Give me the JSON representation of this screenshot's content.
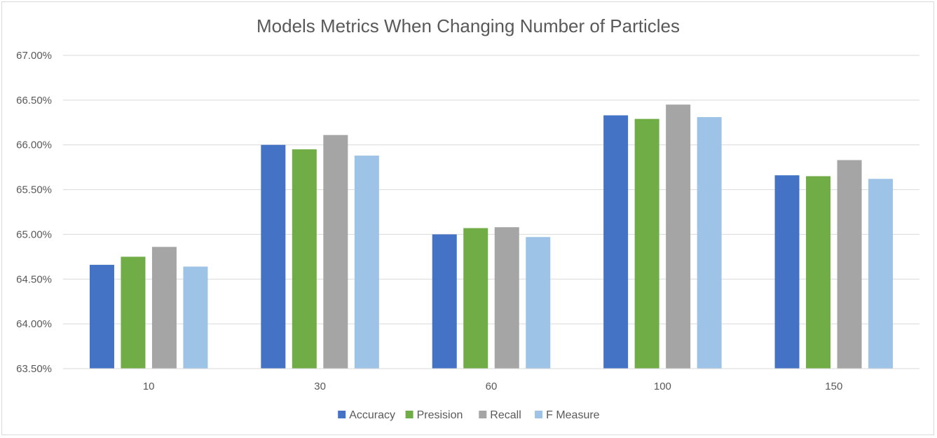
{
  "chart_data": {
    "type": "bar",
    "title": "Models Metrics When Changing Number of Particles",
    "xlabel": "",
    "ylabel": "",
    "categories": [
      "10",
      "30",
      "60",
      "100",
      "150"
    ],
    "series": [
      {
        "name": "Accuracy",
        "color": "#4472c4",
        "values": [
          64.66,
          66.0,
          65.0,
          66.33,
          65.66
        ]
      },
      {
        "name": "Presision",
        "color": "#70ad47",
        "values": [
          64.75,
          65.95,
          65.07,
          66.29,
          65.65
        ]
      },
      {
        "name": "Recall",
        "color": "#a5a5a5",
        "values": [
          64.86,
          66.11,
          65.08,
          66.45,
          65.83
        ]
      },
      {
        "name": "F Measure",
        "color": "#9dc3e6",
        "values": [
          64.64,
          65.88,
          64.97,
          66.31,
          65.62
        ]
      }
    ],
    "ylim": [
      63.5,
      67.0
    ],
    "yticks": [
      63.5,
      64.0,
      64.5,
      65.0,
      65.5,
      66.0,
      66.5,
      67.0
    ],
    "ytick_labels": [
      "63.50%",
      "64.00%",
      "64.50%",
      "65.00%",
      "65.50%",
      "66.00%",
      "66.50%",
      "67.00%"
    ],
    "grid": true,
    "legend_position": "bottom"
  }
}
